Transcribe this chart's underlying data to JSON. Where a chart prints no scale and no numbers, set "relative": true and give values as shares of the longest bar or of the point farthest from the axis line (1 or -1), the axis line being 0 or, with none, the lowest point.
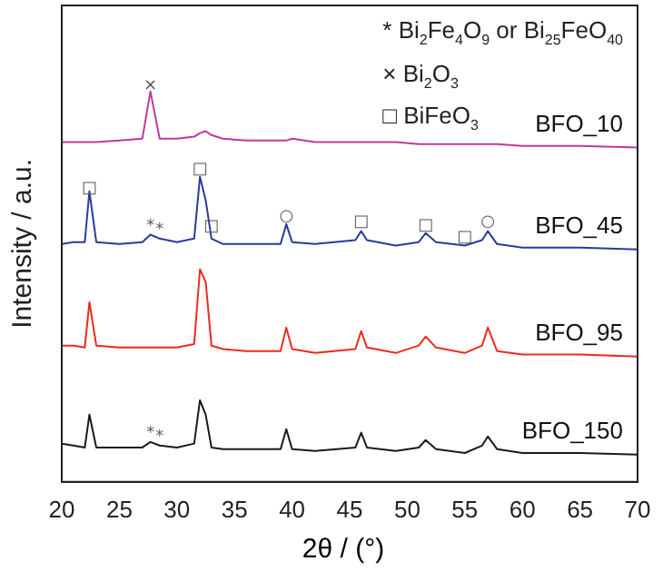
{
  "chart_data": {
    "type": "line",
    "relative": true,
    "xlabel": "2θ / (°)",
    "ylabel": "Intensity / a.u.",
    "xlim": [
      20,
      70
    ],
    "xticks": [
      20,
      25,
      30,
      35,
      40,
      45,
      50,
      55,
      60,
      65,
      70
    ],
    "grid": false,
    "legend": false,
    "marker": "none",
    "line_style": "solid",
    "x": [
      20,
      21,
      22,
      22.4,
      23,
      25,
      27,
      27.7,
      28.5,
      30,
      31.5,
      32,
      32.5,
      33,
      34,
      36,
      39,
      39.5,
      40,
      42,
      45.5,
      46,
      46.5,
      49,
      51,
      51.6,
      52.5,
      55,
      56.5,
      57,
      57.8,
      60,
      65,
      70
    ],
    "series": [
      {
        "name": "BFO_10",
        "color": "#c0399a",
        "values": [
          0.87,
          0.87,
          0.87,
          0.87,
          0.87,
          0.874,
          0.879,
          1.0,
          0.879,
          0.879,
          0.884,
          0.893,
          0.898,
          0.888,
          0.879,
          0.874,
          0.874,
          0.874,
          0.879,
          0.87,
          0.87,
          0.87,
          0.87,
          0.87,
          0.865,
          0.865,
          0.865,
          0.865,
          0.865,
          0.865,
          0.865,
          0.86,
          0.86,
          0.856
        ]
      },
      {
        "name": "BFO_45",
        "color": "#2b3a9e",
        "values": [
          0.609,
          0.614,
          0.614,
          0.744,
          0.614,
          0.609,
          0.614,
          0.633,
          0.623,
          0.614,
          0.623,
          0.781,
          0.721,
          0.623,
          0.609,
          0.609,
          0.609,
          0.66,
          0.614,
          0.609,
          0.619,
          0.642,
          0.619,
          0.605,
          0.614,
          0.637,
          0.614,
          0.605,
          0.619,
          0.642,
          0.609,
          0.6,
          0.6,
          0.595
        ]
      },
      {
        "name": "BFO_95",
        "color": "#ee2a1b",
        "values": [
          0.349,
          0.349,
          0.344,
          0.46,
          0.349,
          0.344,
          0.344,
          0.344,
          0.344,
          0.344,
          0.353,
          0.544,
          0.512,
          0.349,
          0.34,
          0.335,
          0.335,
          0.395,
          0.34,
          0.33,
          0.34,
          0.386,
          0.344,
          0.33,
          0.349,
          0.372,
          0.344,
          0.33,
          0.349,
          0.395,
          0.335,
          0.326,
          0.326,
          0.321
        ]
      },
      {
        "name": "BFO_150",
        "color": "#1a1a1a",
        "values": [
          0.098,
          0.093,
          0.088,
          0.172,
          0.088,
          0.088,
          0.088,
          0.102,
          0.093,
          0.088,
          0.098,
          0.209,
          0.172,
          0.088,
          0.084,
          0.084,
          0.084,
          0.135,
          0.084,
          0.079,
          0.088,
          0.126,
          0.088,
          0.079,
          0.088,
          0.107,
          0.084,
          0.074,
          0.093,
          0.116,
          0.084,
          0.074,
          0.074,
          0.07
        ]
      }
    ],
    "annotations": [
      "* Bi$_{2}$Fe$_{4}$O$_{9}$ or Bi$_{25}$FeO$_{40}$",
      "× Bi$_{2}$O$_{3}$",
      "□ BiFeO$_{3}$",
      {
        "text": "×",
        "x": 27.7,
        "y": 1.014
      },
      {
        "text": "□",
        "x": 22.4,
        "y": 0.753
      },
      {
        "text": "*",
        "x": 27.7,
        "y": 0.655
      },
      {
        "text": "*",
        "x": 28.5,
        "y": 0.645
      },
      {
        "text": "□",
        "x": 32,
        "y": 0.8
      },
      {
        "text": "□",
        "x": 33,
        "y": 0.655
      },
      {
        "text": "○",
        "x": 39.5,
        "y": 0.679
      },
      {
        "text": "□",
        "x": 46,
        "y": 0.665
      },
      {
        "text": "□",
        "x": 51.6,
        "y": 0.656
      },
      {
        "text": "□",
        "x": 55,
        "y": 0.627
      },
      {
        "text": "○",
        "x": 57,
        "y": 0.665
      },
      {
        "text": "*",
        "x": 27.7,
        "y": 0.125
      },
      {
        "text": "*",
        "x": 28.5,
        "y": 0.115
      }
    ]
  }
}
